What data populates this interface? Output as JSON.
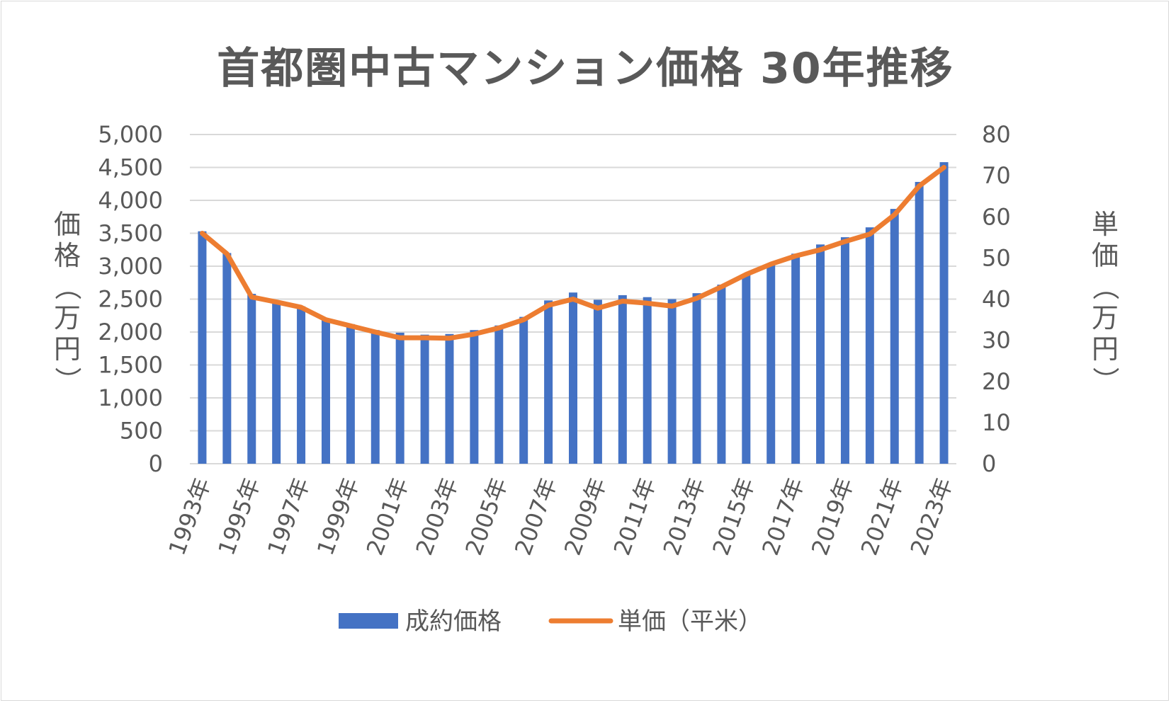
{
  "chart_data": {
    "type": "bar",
    "title": "首都圏中古マンション価格 30年推移",
    "categories": [
      "1993年",
      "1994年",
      "1995年",
      "1996年",
      "1997年",
      "1998年",
      "1999年",
      "2000年",
      "2001年",
      "2002年",
      "2003年",
      "2004年",
      "2005年",
      "2006年",
      "2007年",
      "2008年",
      "2009年",
      "2010年",
      "2011年",
      "2012年",
      "2013年",
      "2014年",
      "2015年",
      "2016年",
      "2017年",
      "2018年",
      "2019年",
      "2020年",
      "2021年",
      "2022年",
      "2023年"
    ],
    "x_tick_labels": [
      "1993年",
      "1995年",
      "1997年",
      "1999年",
      "2001年",
      "2003年",
      "2005年",
      "2007年",
      "2009年",
      "2011年",
      "2013年",
      "2015年",
      "2017年",
      "2019年",
      "2021年",
      "2023年"
    ],
    "series": [
      {
        "name": "成約価格",
        "type": "bar",
        "axis": "left",
        "color": "#4472c4",
        "values": [
          3530,
          3200,
          2580,
          2460,
          2390,
          2200,
          2120,
          2030,
          1990,
          1960,
          1970,
          2030,
          2100,
          2230,
          2480,
          2600,
          2490,
          2560,
          2530,
          2500,
          2590,
          2720,
          2880,
          3040,
          3190,
          3330,
          3440,
          3590,
          3870,
          4280,
          4580
        ]
      },
      {
        "name": "単価（平米）",
        "type": "line",
        "axis": "right",
        "color": "#ed7d31",
        "values": [
          56,
          51,
          40.5,
          39.3,
          38,
          35,
          33.5,
          32,
          30.6,
          30.6,
          30.5,
          31.5,
          33,
          35,
          38.5,
          40,
          37.8,
          39.5,
          39,
          38.3,
          40.2,
          43,
          46,
          48.5,
          50.5,
          52,
          54,
          55.8,
          60.5,
          67.5,
          72
        ]
      }
    ],
    "y_left": {
      "label": "価格（万円）",
      "min": 0,
      "max": 5000,
      "ticks": [
        "0",
        "500",
        "1,000",
        "1,500",
        "2,000",
        "2,500",
        "3,000",
        "3,500",
        "4,000",
        "4,500",
        "5,000"
      ]
    },
    "y_right": {
      "label": "単価（万円）",
      "min": 0,
      "max": 80,
      "ticks": [
        "0",
        "10",
        "20",
        "30",
        "40",
        "50",
        "60",
        "70",
        "80"
      ]
    },
    "legend_position": "bottom",
    "grid": true
  }
}
